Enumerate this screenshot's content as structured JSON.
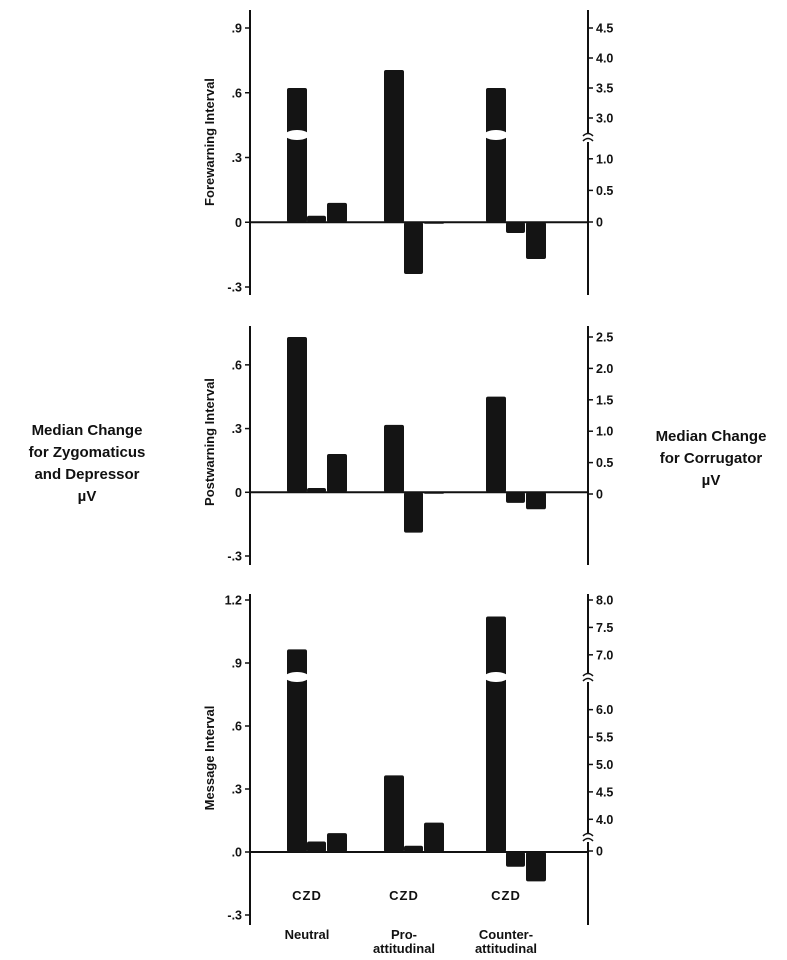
{
  "side_labels": {
    "left": [
      "Median Change",
      "for Zygomaticus",
      "and Depressor",
      "µV"
    ],
    "right": [
      "Median Change",
      "for Corrugator",
      "µV"
    ]
  },
  "chart_data": [
    {
      "type": "bar",
      "ylabel": "Forewarning Interval",
      "groups": [
        "Neutral",
        "Pro-attitudinal",
        "Counter-attitudinal"
      ],
      "bar_labels": [
        "C",
        "Z",
        "D"
      ],
      "left_axis": {
        "ticks": [
          ".9",
          ".6",
          ".3",
          "0",
          "-.3"
        ],
        "range": [
          -0.3,
          0.9
        ],
        "applies_to": [
          "Z",
          "D"
        ]
      },
      "right_axis": {
        "ticks": [
          "4.5",
          "4.0",
          "3.5",
          "3.0",
          "1.0",
          "0.5",
          "0"
        ],
        "break": [
          1.25,
          2.75
        ],
        "applies_to": [
          "C"
        ]
      },
      "series": [
        {
          "name": "C",
          "axis": "right",
          "values": [
            3.5,
            3.8,
            3.5
          ]
        },
        {
          "name": "Z",
          "axis": "left",
          "values": [
            0.03,
            -0.24,
            -0.05
          ]
        },
        {
          "name": "D",
          "axis": "left",
          "values": [
            0.09,
            0.0,
            -0.17
          ]
        }
      ]
    },
    {
      "type": "bar",
      "ylabel": "Postwarning Interval",
      "groups": [
        "Neutral",
        "Pro-attitudinal",
        "Counter-attitudinal"
      ],
      "bar_labels": [
        "C",
        "Z",
        "D"
      ],
      "left_axis": {
        "ticks": [
          ".6",
          ".3",
          "0",
          "-.3"
        ],
        "range": [
          -0.3,
          0.75
        ],
        "applies_to": [
          "Z",
          "D"
        ]
      },
      "right_axis": {
        "ticks": [
          "2.5",
          "2.0",
          "1.5",
          "1.0",
          "0.5",
          "0"
        ],
        "applies_to": [
          "C"
        ]
      },
      "series": [
        {
          "name": "C",
          "axis": "right",
          "values": [
            2.5,
            1.1,
            1.55
          ]
        },
        {
          "name": "Z",
          "axis": "left",
          "values": [
            0.02,
            -0.19,
            -0.05
          ]
        },
        {
          "name": "D",
          "axis": "left",
          "values": [
            0.18,
            0.0,
            -0.08
          ]
        }
      ]
    },
    {
      "type": "bar",
      "ylabel": "Message Interval",
      "groups": [
        "Neutral",
        "Pro-attitudinal",
        "Counter-attitudinal"
      ],
      "bar_labels": [
        "C",
        "Z",
        "D"
      ],
      "left_axis": {
        "ticks": [
          "1.2",
          ".9",
          ".6",
          ".3",
          ".0",
          "-.3"
        ],
        "range": [
          -0.3,
          1.2
        ],
        "applies_to": [
          "Z",
          "D"
        ]
      },
      "right_axis": {
        "ticks": [
          "8.0",
          "7.5",
          "7.0",
          "6.0",
          "5.5",
          "5.0",
          "4.5",
          "4.0",
          "0"
        ],
        "break": [
          0.5,
          3.75
        ],
        "applies_to": [
          "C"
        ]
      },
      "series": [
        {
          "name": "C",
          "axis": "right",
          "values": [
            7.1,
            4.8,
            7.7
          ]
        },
        {
          "name": "Z",
          "axis": "left",
          "values": [
            0.05,
            0.03,
            -0.07
          ]
        },
        {
          "name": "D",
          "axis": "left",
          "values": [
            0.09,
            0.14,
            -0.14
          ]
        }
      ]
    }
  ],
  "group_labels": [
    {
      "letters": "CZD",
      "name": [
        "Neutral"
      ]
    },
    {
      "letters": "CZD",
      "name": [
        "Pro-",
        "attitudinal"
      ]
    },
    {
      "letters": "CZD",
      "name": [
        "Counter-",
        "attitudinal"
      ]
    }
  ]
}
